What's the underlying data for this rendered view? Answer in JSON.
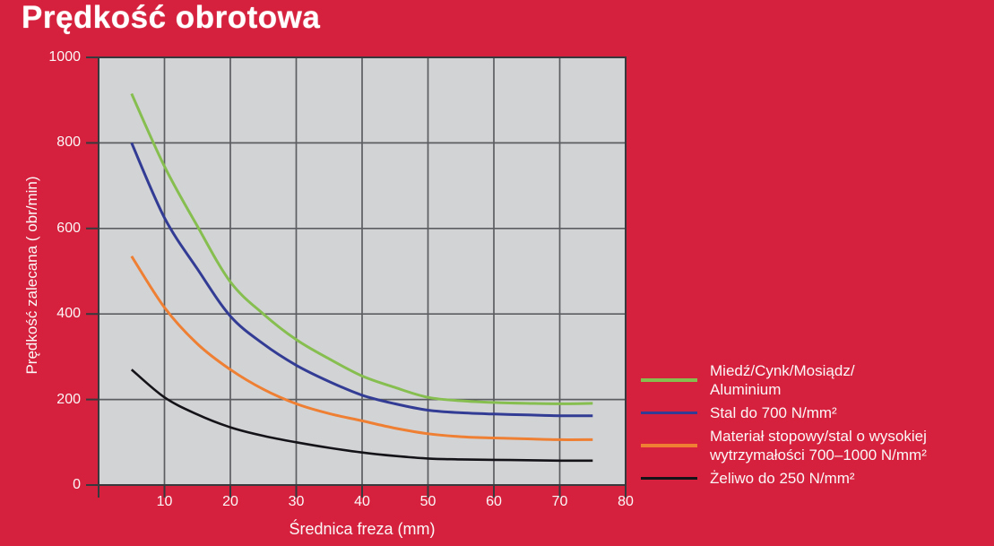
{
  "title": "Prędkość obrotowa",
  "axes": {
    "x_label": "Średnica freza (mm)",
    "y_label": "Prędkość zalecana ( obr/min)"
  },
  "colors": {
    "background": "#d5213e",
    "plot_background": "#d2d3d5",
    "grid": "#5c5d60",
    "axis": "#38393c",
    "text": "#ffffff"
  },
  "chart_data": {
    "type": "line",
    "title": "Prędkość obrotowa",
    "xlabel": "Średnica freza (mm)",
    "ylabel": "Prędkość zalecana ( obr/min)",
    "xlim": [
      0,
      80
    ],
    "ylim": [
      0,
      1000
    ],
    "x_ticks": [
      10,
      20,
      30,
      40,
      50,
      60,
      70,
      80
    ],
    "y_ticks": [
      0,
      200,
      400,
      600,
      800,
      1000
    ],
    "grid": true,
    "legend_position": "right",
    "x": [
      5,
      10,
      15,
      20,
      25,
      30,
      35,
      40,
      45,
      50,
      55,
      60,
      65,
      70,
      75
    ],
    "series": [
      {
        "name": "Miedź/Cynk/Mosiądz/Aluminium",
        "color": "#86be50",
        "stroke_width": 3,
        "values": [
          915,
          745,
          605,
          475,
          400,
          340,
          295,
          255,
          228,
          205,
          197,
          193,
          191,
          190,
          191
        ]
      },
      {
        "name": "Stal do 700 N/mm²",
        "color": "#333c94",
        "stroke_width": 3,
        "values": [
          800,
          625,
          505,
          395,
          330,
          280,
          242,
          210,
          190,
          175,
          169,
          166,
          164,
          162,
          162
        ]
      },
      {
        "name": "Materiał stopowy/stal o wysokiej wytrzymałości 700–1000 N/mm²",
        "color": "#ee7f33",
        "stroke_width": 3,
        "values": [
          535,
          415,
          330,
          270,
          224,
          190,
          167,
          150,
          133,
          120,
          113,
          110,
          108,
          106,
          106
        ]
      },
      {
        "name": "Żeliwo do 250 N/mm²",
        "color": "#141318",
        "stroke_width": 2.6,
        "values": [
          270,
          205,
          165,
          135,
          115,
          100,
          87,
          76,
          68,
          62,
          60,
          59,
          58,
          57,
          57
        ]
      }
    ]
  },
  "legend": {
    "items": [
      {
        "color": "#86be50",
        "lines": [
          "Miedź/Cynk/Mosiądz/",
          "Aluminium"
        ]
      },
      {
        "color": "#333c94",
        "lines": [
          "Stal do 700 N/mm²"
        ]
      },
      {
        "color": "#ee7f33",
        "lines": [
          "Materiał stopowy/stal o wysokiej",
          "wytrzymałości 700–1000 N/mm²"
        ]
      },
      {
        "color": "#141318",
        "lines": [
          "Żeliwo do 250 N/mm²"
        ]
      }
    ]
  }
}
